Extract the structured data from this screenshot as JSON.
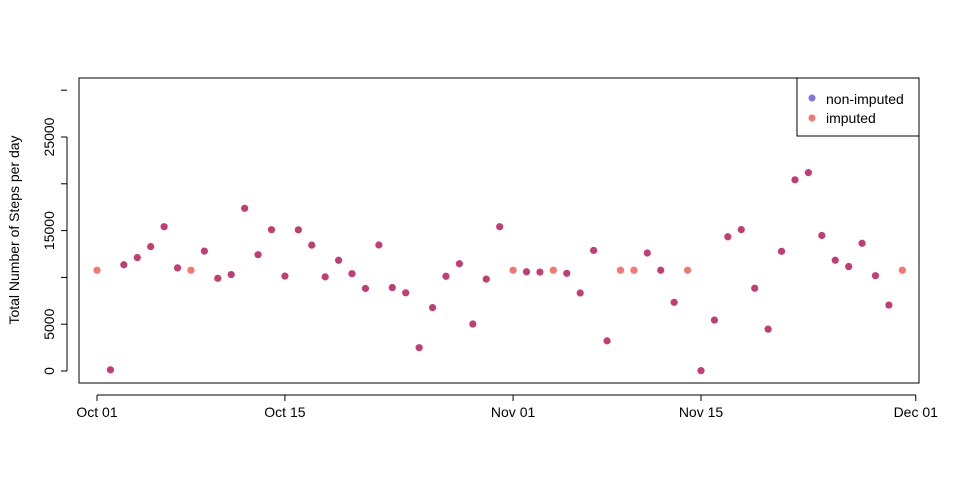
{
  "chart_data": {
    "type": "scatter",
    "title": "",
    "xlabel": "",
    "ylabel": "Total Number of Steps per day",
    "xlim": [
      "2012-10-01",
      "2012-11-30"
    ],
    "ylim": [
      0,
      30000
    ],
    "x_ticks": [
      "Oct 01",
      "Oct 15",
      "Nov 01",
      "Nov 15",
      "Dec 01"
    ],
    "x_tick_dates": [
      "2012-10-01",
      "2012-10-15",
      "2012-11-01",
      "2012-11-15",
      "2012-12-01"
    ],
    "y_ticks": [
      "0",
      "5000",
      "15000",
      "25000"
    ],
    "y_tick_values": [
      0,
      5000,
      15000,
      25000
    ],
    "grid": false,
    "legend_position": "top-right",
    "series": [
      {
        "name": "non-imputed",
        "color": "#7b74f0",
        "marker_color": "#c43c72",
        "x": [
          "2012-10-02",
          "2012-10-03",
          "2012-10-04",
          "2012-10-05",
          "2012-10-06",
          "2012-10-07",
          "2012-10-09",
          "2012-10-10",
          "2012-10-11",
          "2012-10-12",
          "2012-10-13",
          "2012-10-14",
          "2012-10-15",
          "2012-10-16",
          "2012-10-17",
          "2012-10-18",
          "2012-10-19",
          "2012-10-20",
          "2012-10-21",
          "2012-10-22",
          "2012-10-23",
          "2012-10-24",
          "2012-10-25",
          "2012-10-26",
          "2012-10-27",
          "2012-10-28",
          "2012-10-29",
          "2012-10-30",
          "2012-10-31",
          "2012-11-02",
          "2012-11-03",
          "2012-11-05",
          "2012-11-06",
          "2012-11-07",
          "2012-11-08",
          "2012-11-11",
          "2012-11-12",
          "2012-11-13",
          "2012-11-15",
          "2012-11-16",
          "2012-11-17",
          "2012-11-18",
          "2012-11-19",
          "2012-11-20",
          "2012-11-21",
          "2012-11-22",
          "2012-11-23",
          "2012-11-24",
          "2012-11-25",
          "2012-11-26",
          "2012-11-27",
          "2012-11-28",
          "2012-11-29"
        ],
        "values": [
          126,
          11352,
          12116,
          13294,
          15420,
          11015,
          12811,
          9900,
          10304,
          17382,
          12426,
          15098,
          10139,
          15084,
          13452,
          10056,
          11829,
          10395,
          8821,
          13460,
          8918,
          8355,
          2492,
          6778,
          10119,
          11458,
          5018,
          9819,
          15414,
          10600,
          10571,
          10439,
          8334,
          12883,
          3219,
          12608,
          10765,
          7336,
          41,
          5441,
          14339,
          15110,
          8841,
          4472,
          12787,
          20427,
          21194,
          14478,
          11834,
          11162,
          13646,
          10183,
          7047
        ]
      },
      {
        "name": "imputed",
        "color": "#f8766d",
        "marker_color": "#f8766d",
        "x": [
          "2012-10-01",
          "2012-10-08",
          "2012-11-01",
          "2012-11-04",
          "2012-11-09",
          "2012-11-10",
          "2012-11-14",
          "2012-11-30"
        ],
        "values": [
          10766,
          10766,
          10766,
          10766,
          10766,
          10766,
          10766,
          10766
        ]
      }
    ]
  }
}
